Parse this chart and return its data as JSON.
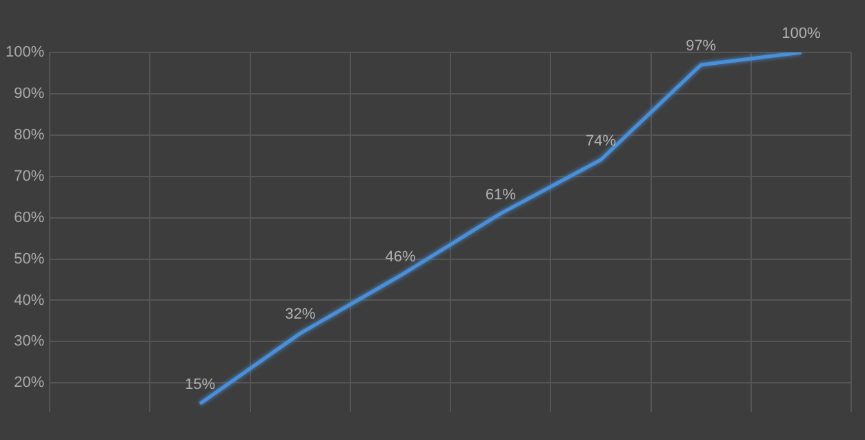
{
  "chart_data": {
    "type": "line",
    "categories": [
      null,
      null,
      null,
      null,
      null,
      null,
      null,
      null
    ],
    "series": [
      {
        "color": "#4a90d9",
        "values": [
          null,
          15,
          32,
          46,
          61,
          74,
          97,
          100
        ],
        "value_labels": [
          null,
          "15%",
          "32%",
          "46%",
          "61%",
          "74%",
          "97%",
          "100%"
        ]
      }
    ],
    "ylim": [
      13,
      100
    ],
    "yticks": [
      {
        "value": 20,
        "label": "20%"
      },
      {
        "value": 30,
        "label": "30%"
      },
      {
        "value": 40,
        "label": "40%"
      },
      {
        "value": 50,
        "label": "50%"
      },
      {
        "value": 60,
        "label": "60%"
      },
      {
        "value": 70,
        "label": "70%"
      },
      {
        "value": 80,
        "label": "80%"
      },
      {
        "value": 90,
        "label": "90%"
      },
      {
        "value": 100,
        "label": "100%"
      }
    ],
    "grid": true,
    "legend": false,
    "marker": "none",
    "line_style": "solid"
  }
}
